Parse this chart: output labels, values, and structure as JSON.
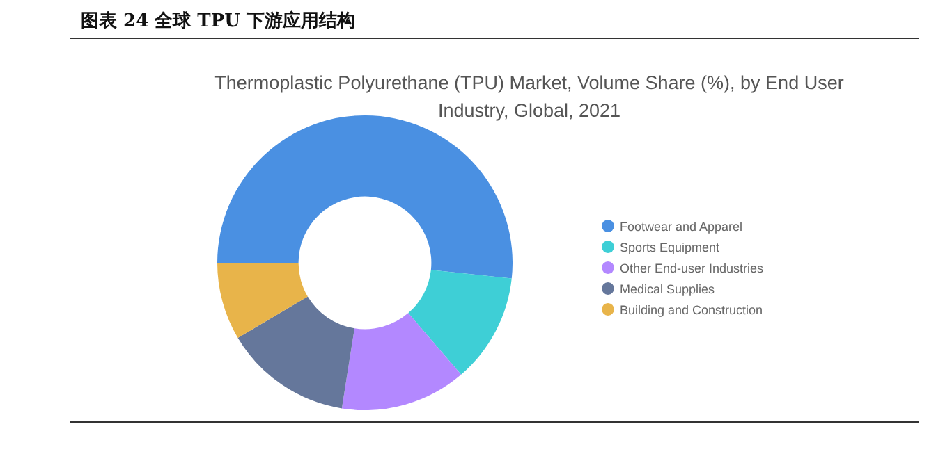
{
  "chart_data": {
    "type": "donut",
    "title": "图表 24 全球 TPU 下游应用结构",
    "subtitle": "Thermoplastic Polyurethane (TPU) Market, Volume Share (%), by End User Industry, Global, 2021",
    "categories": [
      "Footwear and Apparel",
      "Sports Equipment",
      "Other End-user Industries",
      "Medical Supplies",
      "Building and Construction"
    ],
    "values": [
      51.7,
      12,
      13.8,
      14,
      8.5
    ],
    "colors": [
      "#4a90e2",
      "#3ecfd6",
      "#b388ff",
      "#65779b",
      "#e8b44a"
    ],
    "legend": "right"
  }
}
